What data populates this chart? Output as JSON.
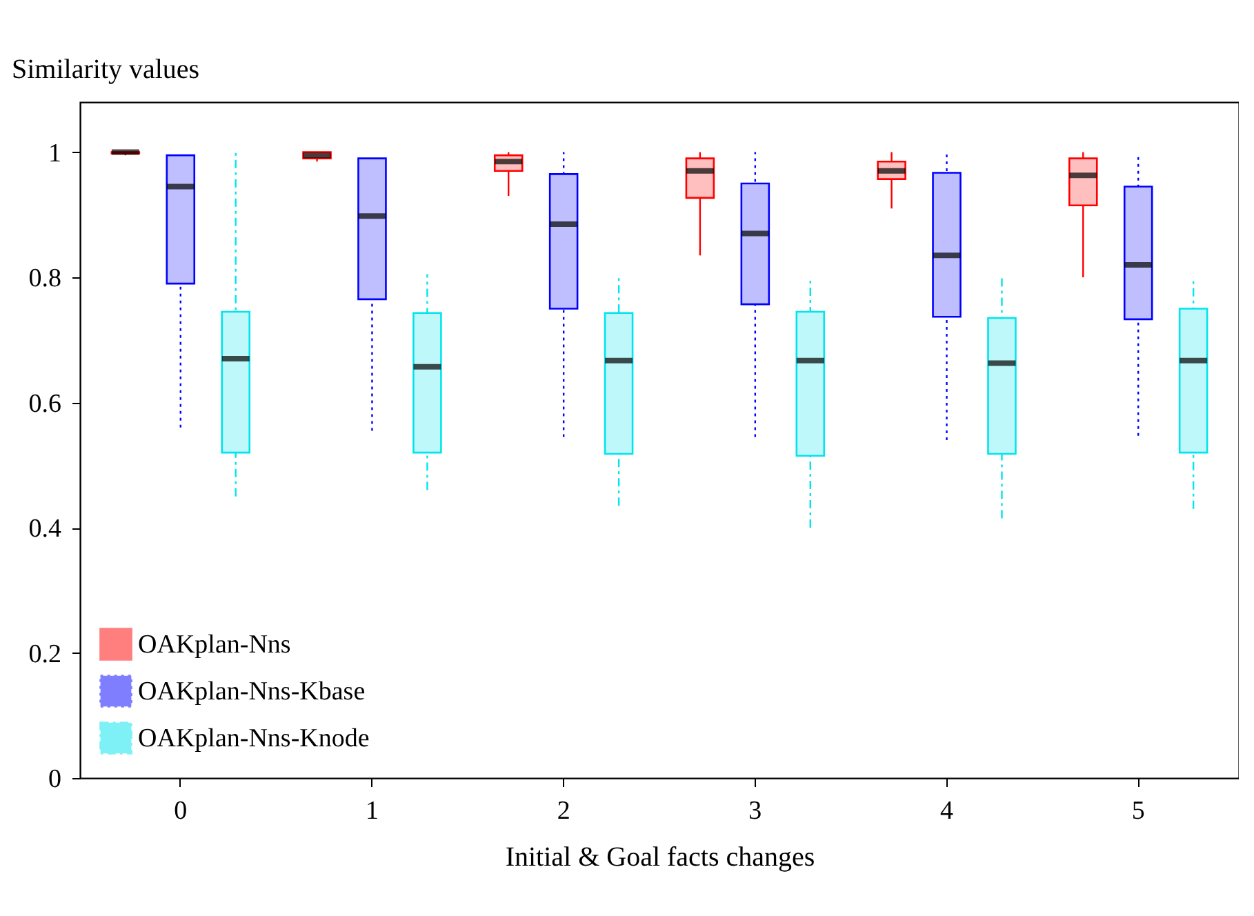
{
  "chart_data": {
    "type": "box",
    "xlabel": "Initial & Goal facts changes",
    "ylabel": "Similarity values",
    "categories": [
      "0",
      "1",
      "2",
      "3",
      "4",
      "5"
    ],
    "ylim": [
      0,
      1.08
    ],
    "yticks": [
      0,
      0.2,
      0.4,
      0.6,
      0.8,
      1
    ],
    "grid": false,
    "legend": "bottom left",
    "series": [
      {
        "name": "OAKplan-Nns",
        "color": "#ff0000",
        "line_style": "solid",
        "boxes": [
          {
            "low": 0.995,
            "q1": 0.998,
            "median": 1,
            "q3": 1,
            "high": 1
          },
          {
            "low": 0.985,
            "q1": 0.99,
            "median": 0.995,
            "q3": 1,
            "high": 1
          },
          {
            "low": 0.93,
            "q1": 0.97,
            "median": 0.985,
            "q3": 0.995,
            "high": 1
          },
          {
            "low": 0.835,
            "q1": 0.927,
            "median": 0.97,
            "q3": 0.99,
            "high": 1
          },
          {
            "low": 0.91,
            "q1": 0.957,
            "median": 0.97,
            "q3": 0.985,
            "high": 1
          },
          {
            "low": 0.8,
            "q1": 0.915,
            "median": 0.963,
            "q3": 0.99,
            "high": 1
          }
        ]
      },
      {
        "name": "OAKplan-Nns-Kbase",
        "color": "#0000ff",
        "line_style": "dotted",
        "boxes": [
          {
            "low": 0.56,
            "q1": 0.79,
            "median": 0.945,
            "q3": 0.995,
            "high": 0.995
          },
          {
            "low": 0.555,
            "q1": 0.765,
            "median": 0.898,
            "q3": 0.99,
            "high": 0.99
          },
          {
            "low": 0.545,
            "q1": 0.75,
            "median": 0.885,
            "q3": 0.965,
            "high": 1
          },
          {
            "low": 0.545,
            "q1": 0.757,
            "median": 0.87,
            "q3": 0.95,
            "high": 1
          },
          {
            "low": 0.54,
            "q1": 0.737,
            "median": 0.835,
            "q3": 0.967,
            "high": 1
          },
          {
            "low": 0.547,
            "q1": 0.733,
            "median": 0.82,
            "q3": 0.945,
            "high": 0.995
          }
        ]
      },
      {
        "name": "OAKplan-Nns-Knode",
        "color": "#00e5ee",
        "line_style": "dashed",
        "boxes": [
          {
            "low": 0.45,
            "q1": 0.52,
            "median": 0.67,
            "q3": 0.745,
            "high": 1
          },
          {
            "low": 0.46,
            "q1": 0.52,
            "median": 0.657,
            "q3": 0.743,
            "high": 0.805
          },
          {
            "low": 0.435,
            "q1": 0.518,
            "median": 0.667,
            "q3": 0.743,
            "high": 0.805
          },
          {
            "low": 0.4,
            "q1": 0.515,
            "median": 0.667,
            "q3": 0.745,
            "high": 0.8
          },
          {
            "low": 0.415,
            "q1": 0.518,
            "median": 0.663,
            "q3": 0.735,
            "high": 0.805
          },
          {
            "low": 0.43,
            "q1": 0.52,
            "median": 0.667,
            "q3": 0.75,
            "high": 0.795
          }
        ]
      }
    ]
  }
}
